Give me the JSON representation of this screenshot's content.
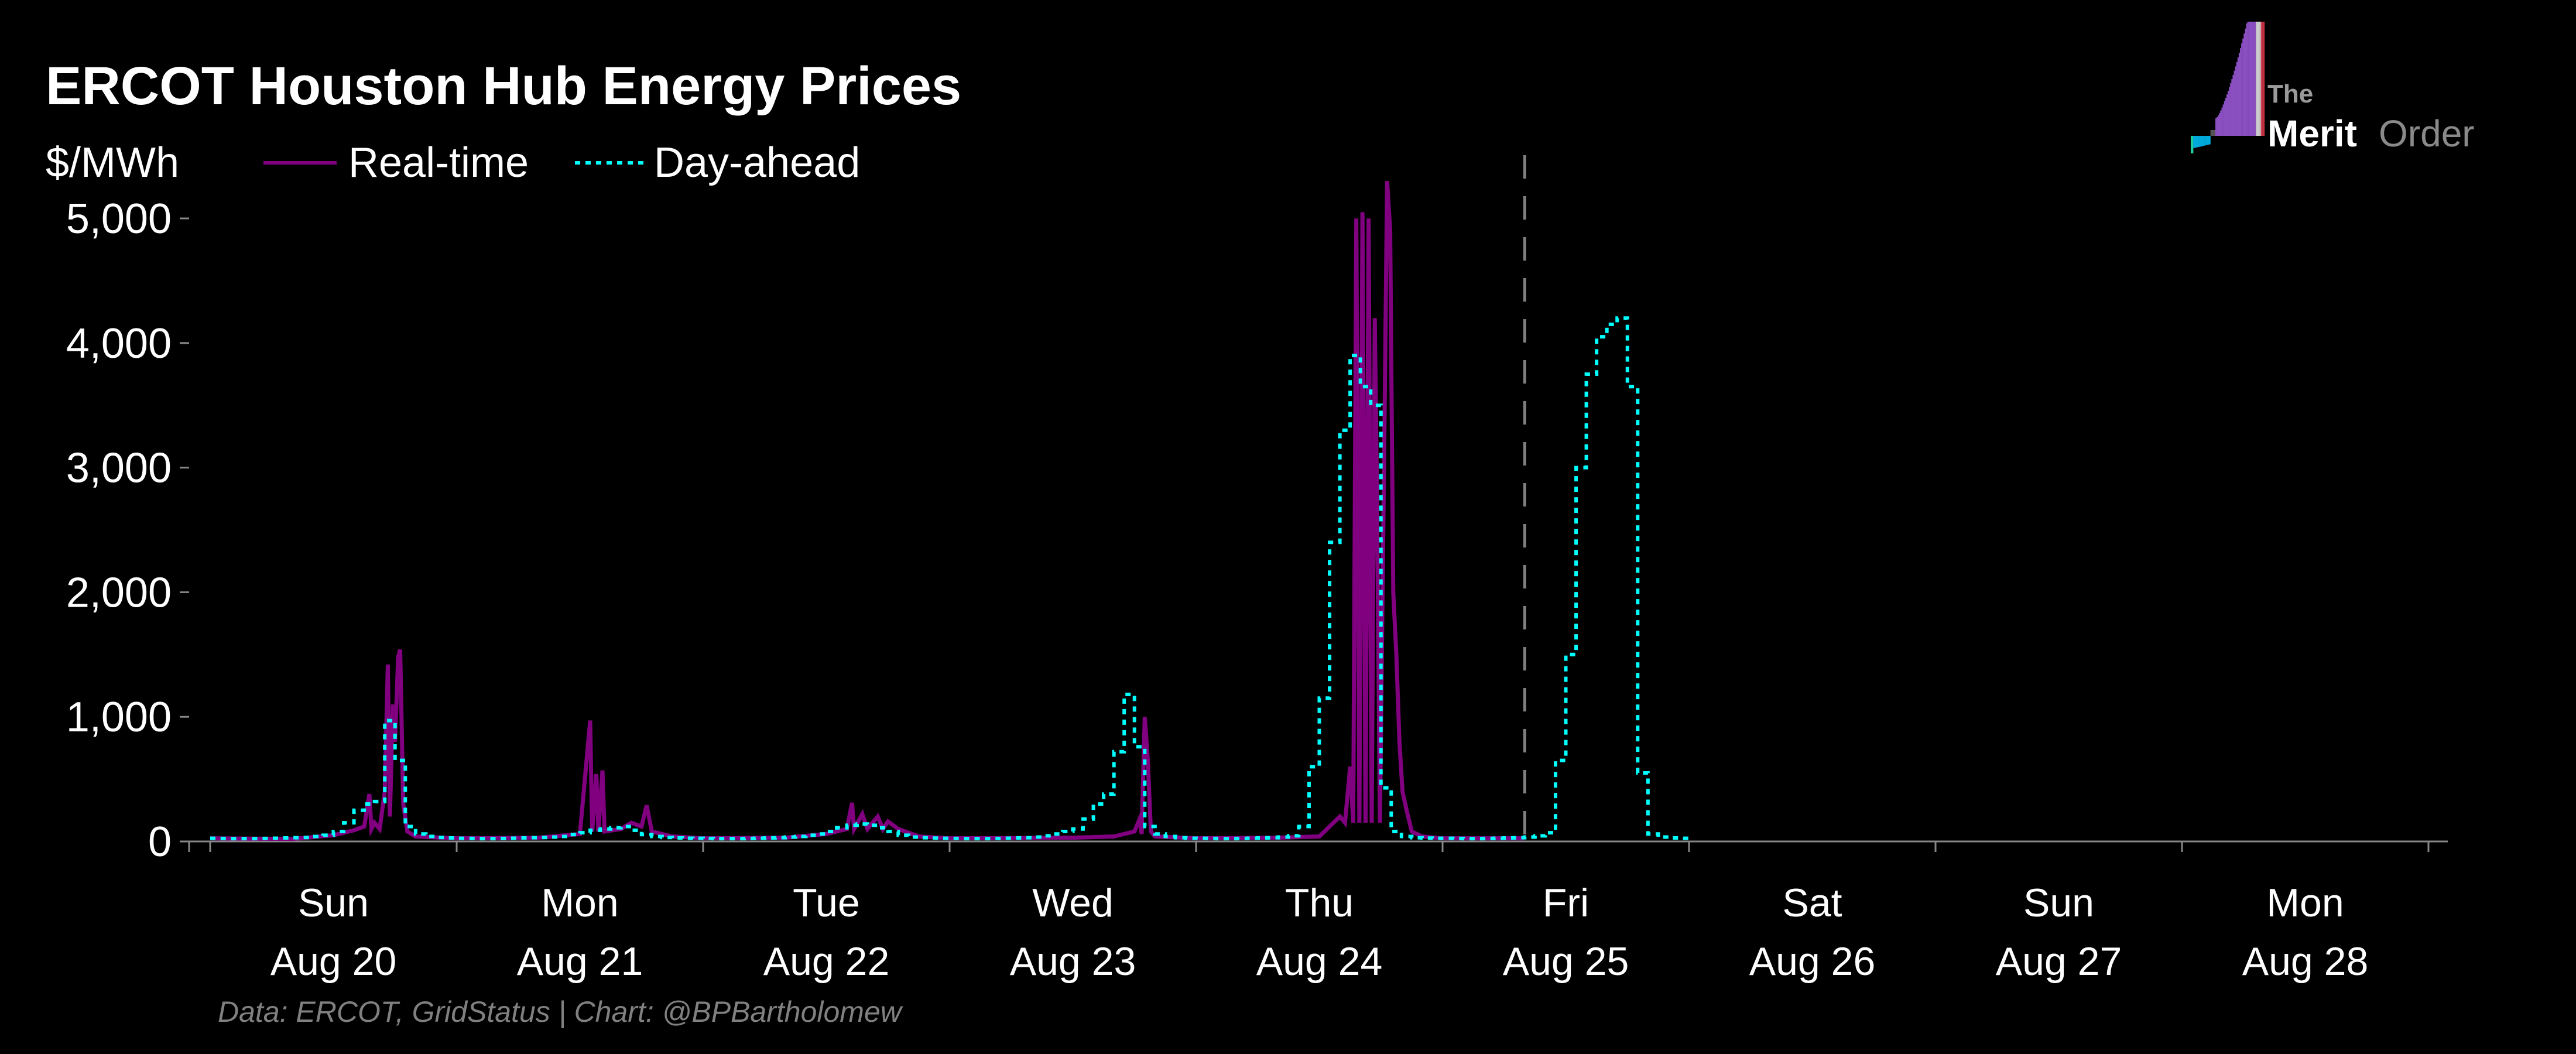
{
  "chart_data": {
    "type": "line",
    "title": "ERCOT Houston Hub Energy Prices",
    "ylabel": "$/MWh",
    "xlabel": "",
    "source": "Data: ERCOT, GridStatus | Chart: @BPBartholomew",
    "logo": {
      "line1": "The",
      "line2a": "Merit",
      "line2b": "Order"
    },
    "x_unit": "hours since Aug 20 00:00",
    "xlim_hours": [
      -2,
      218
    ],
    "ylim": [
      0,
      5400
    ],
    "yticks": [
      0,
      1000,
      2000,
      3000,
      4000,
      5000
    ],
    "ytick_labels": [
      "0",
      "1,000",
      "2,000",
      "3,000",
      "4,000",
      "5,000"
    ],
    "x_categories": [
      {
        "day": "Sun",
        "date": "Aug 20"
      },
      {
        "day": "Mon",
        "date": "Aug 21"
      },
      {
        "day": "Tue",
        "date": "Aug 22"
      },
      {
        "day": "Wed",
        "date": "Aug 23"
      },
      {
        "day": "Thu",
        "date": "Aug 24"
      },
      {
        "day": "Fri",
        "date": "Aug 25"
      },
      {
        "day": "Sat",
        "date": "Aug 26"
      },
      {
        "day": "Sun",
        "date": "Aug 27"
      },
      {
        "day": "Mon",
        "date": "Aug 28"
      }
    ],
    "now_marker_hour": 128,
    "legend": {
      "position": "top-left"
    },
    "series": [
      {
        "name": "Real-time",
        "color": "#800080",
        "style": "solid",
        "points": [
          [
            0,
            25
          ],
          [
            8,
            20
          ],
          [
            12,
            50
          ],
          [
            14,
            90
          ],
          [
            15,
            120
          ],
          [
            15.5,
            380
          ],
          [
            15.7,
            100
          ],
          [
            16,
            150
          ],
          [
            16.5,
            100
          ],
          [
            17,
            400
          ],
          [
            17.3,
            1420
          ],
          [
            17.5,
            200
          ],
          [
            17.8,
            1100
          ],
          [
            18,
            800
          ],
          [
            18.3,
            1480
          ],
          [
            18.5,
            1540
          ],
          [
            18.8,
            300
          ],
          [
            19.2,
            80
          ],
          [
            20,
            40
          ],
          [
            24,
            25
          ],
          [
            32,
            30
          ],
          [
            36,
            60
          ],
          [
            37,
            970
          ],
          [
            37.2,
            80
          ],
          [
            37.6,
            540
          ],
          [
            37.8,
            80
          ],
          [
            38.2,
            570
          ],
          [
            38.4,
            80
          ],
          [
            40,
            100
          ],
          [
            41,
            150
          ],
          [
            42,
            120
          ],
          [
            42.5,
            290
          ],
          [
            43,
            80
          ],
          [
            45,
            40
          ],
          [
            48,
            25
          ],
          [
            56,
            30
          ],
          [
            60,
            60
          ],
          [
            62,
            100
          ],
          [
            62.5,
            310
          ],
          [
            62.7,
            100
          ],
          [
            63.5,
            220
          ],
          [
            64,
            100
          ],
          [
            65,
            200
          ],
          [
            65.5,
            100
          ],
          [
            66,
            160
          ],
          [
            67,
            100
          ],
          [
            69,
            40
          ],
          [
            72,
            25
          ],
          [
            84,
            30
          ],
          [
            88,
            40
          ],
          [
            90,
            80
          ],
          [
            90.5,
            180
          ],
          [
            90.7,
            60
          ],
          [
            91,
            1000
          ],
          [
            91.3,
            650
          ],
          [
            91.6,
            80
          ],
          [
            92,
            40
          ],
          [
            96,
            25
          ],
          [
            104,
            30
          ],
          [
            108,
            40
          ],
          [
            110,
            200
          ],
          [
            110.5,
            150
          ],
          [
            111,
            600
          ],
          [
            111.3,
            150
          ],
          [
            111.6,
            5000
          ],
          [
            111.9,
            150
          ],
          [
            112.2,
            5050
          ],
          [
            112.5,
            150
          ],
          [
            112.8,
            5000
          ],
          [
            113.1,
            150
          ],
          [
            113.4,
            4200
          ],
          [
            113.6,
            2900
          ],
          [
            113.9,
            150
          ],
          [
            114.3,
            3000
          ],
          [
            114.6,
            5300
          ],
          [
            114.9,
            4900
          ],
          [
            115.2,
            2000
          ],
          [
            115.5,
            1500
          ],
          [
            115.8,
            800
          ],
          [
            116.1,
            400
          ],
          [
            116.5,
            250
          ],
          [
            117,
            80
          ],
          [
            118,
            40
          ],
          [
            120,
            25
          ],
          [
            128,
            25
          ]
        ]
      },
      {
        "name": "Day-ahead",
        "color": "#00FFFF",
        "style": "dotted-step",
        "hourly_values": [
          25,
          24,
          23,
          23,
          23,
          24,
          26,
          28,
          30,
          32,
          40,
          50,
          80,
          150,
          250,
          300,
          320,
          970,
          650,
          120,
          60,
          40,
          32,
          28,
          25,
          24,
          23,
          23,
          24,
          26,
          28,
          30,
          32,
          35,
          40,
          55,
          70,
          90,
          100,
          110,
          120,
          90,
          55,
          40,
          32,
          28,
          26,
          25,
          24,
          23,
          23,
          23,
          24,
          26,
          28,
          30,
          35,
          40,
          50,
          60,
          80,
          110,
          130,
          140,
          130,
          110,
          80,
          50,
          35,
          30,
          27,
          25,
          24,
          23,
          23,
          23,
          24,
          26,
          28,
          30,
          35,
          45,
          60,
          80,
          100,
          180,
          300,
          380,
          720,
          1180,
          760,
          120,
          60,
          40,
          30,
          26,
          25,
          24,
          23,
          23,
          24,
          26,
          28,
          30,
          35,
          45,
          120,
          600,
          1150,
          2400,
          3300,
          3900,
          3650,
          3500,
          430,
          80,
          40,
          30,
          27,
          25,
          25,
          24,
          23,
          23,
          24,
          26,
          28,
          30,
          35,
          45,
          70,
          650,
          1500,
          3000,
          3750,
          4050,
          4150,
          4200,
          3650,
          550,
          60,
          35,
          28,
          25
        ]
      }
    ]
  }
}
